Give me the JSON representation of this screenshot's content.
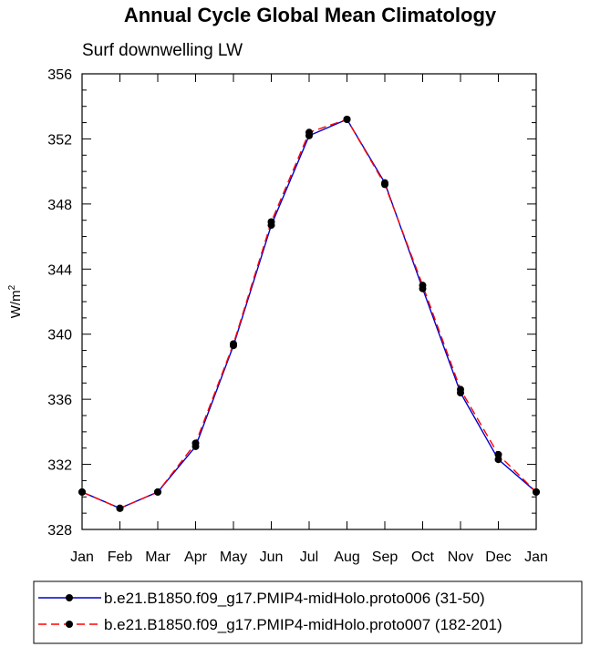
{
  "chart_data": {
    "type": "line",
    "title": "Annual Cycle Global Mean Climatology",
    "subtitle": "Surf downwelling LW",
    "xlabel": "",
    "ylabel": "W/m",
    "ylabel_superscript": "2",
    "categories": [
      "Jan",
      "Feb",
      "Mar",
      "Apr",
      "May",
      "Jun",
      "Jul",
      "Aug",
      "Sep",
      "Oct",
      "Nov",
      "Dec",
      "Jan"
    ],
    "ylim": [
      328,
      356
    ],
    "yticks": [
      328,
      332,
      336,
      340,
      344,
      348,
      352,
      356
    ],
    "ytick_labels": [
      "328",
      "332",
      "336",
      "340",
      "344",
      "348",
      "352",
      "356"
    ],
    "series": [
      {
        "name": "b.e21.B1850.f09_g17.PMIP4-midHolo.proto006 (31-50)",
        "color": "#0000cc",
        "dash": "solid",
        "values": [
          330.3,
          329.3,
          330.3,
          333.1,
          339.3,
          346.7,
          352.2,
          353.2,
          349.3,
          342.8,
          336.4,
          332.3,
          330.3
        ]
      },
      {
        "name": "b.e21.B1850.f09_g17.PMIP4-midHolo.proto007 (182-201)",
        "color": "#ff0000",
        "dash": "dashed",
        "values": [
          330.3,
          329.3,
          330.3,
          333.3,
          339.4,
          346.9,
          352.4,
          353.2,
          349.2,
          343.0,
          336.6,
          332.6,
          330.3
        ]
      }
    ]
  }
}
